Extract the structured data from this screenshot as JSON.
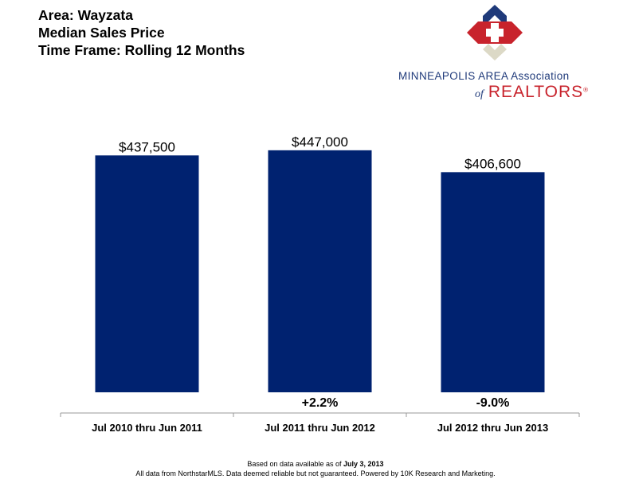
{
  "header": {
    "line1": "Area: Wayzata",
    "line2": "Median Sales Price",
    "line3": "Time Frame: Rolling 12 Months"
  },
  "logo": {
    "line1": "MINNEAPOLIS AREA Association",
    "of": "of",
    "realtors": "REALTORS",
    "registered": "®",
    "icon": "realtors-house-cross-icon",
    "colors": {
      "blue": "#1f3a7a",
      "red": "#c8232c",
      "beige": "#dcd9c6"
    }
  },
  "chart_data": {
    "type": "bar",
    "title": "",
    "xlabel": "",
    "ylabel": "",
    "categories": [
      "Jul 2010 thru Jun 2011",
      "Jul 2011 thru Jun 2012",
      "Jul 2012 thru Jun 2013"
    ],
    "values": [
      437500,
      447000,
      406600
    ],
    "value_labels": [
      "$437,500",
      "$447,000",
      "$406,600"
    ],
    "change_labels": [
      "",
      "+2.2%",
      "-9.0%"
    ],
    "ylim": [
      0,
      460000
    ],
    "grid": false,
    "legend": "none",
    "bar_color": "#002270"
  },
  "footer": {
    "line1_prefix": "Based on data available as of ",
    "line1_date": "July 3, 2013",
    "line2": "All data from NorthstarMLS. Data deemed reliable but not guaranteed. Powered by 10K Research and Marketing."
  }
}
